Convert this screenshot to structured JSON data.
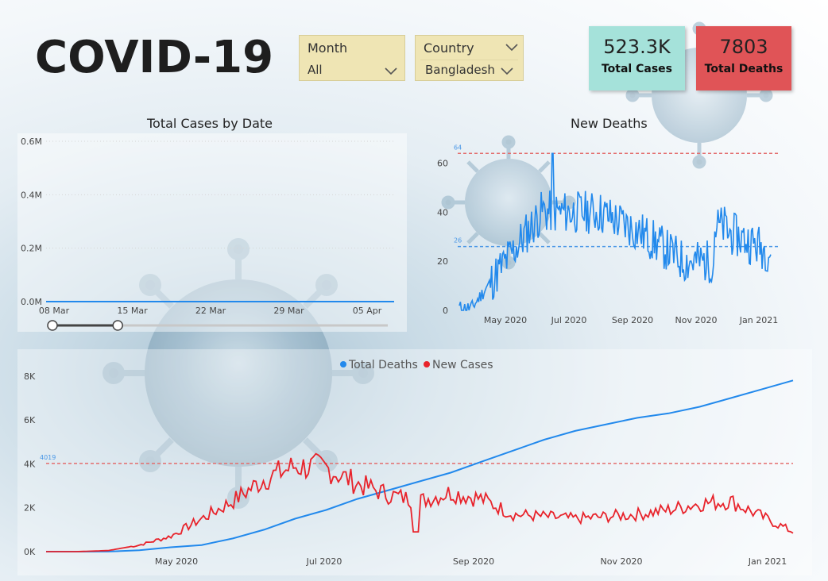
{
  "title": "COVID-19",
  "filters": {
    "month": {
      "label": "Month",
      "value": "All"
    },
    "country": {
      "label": "Country",
      "value": "Bangladesh"
    }
  },
  "cards": {
    "total_cases": {
      "value": "523.3K",
      "label": "Total Cases",
      "color": "#a5e2da"
    },
    "total_deaths": {
      "value": "7803",
      "label": "Total Deaths",
      "color": "#e05457"
    }
  },
  "colors": {
    "blue": "#2289ec",
    "red": "#e8232b",
    "ref_line": "#e36d6d"
  },
  "chart_data": [
    {
      "type": "line",
      "title": "Total Cases by Date",
      "x": [
        "08 Mar",
        "15 Mar",
        "22 Mar",
        "29 Mar",
        "05 Apr"
      ],
      "y_ticks": [
        "0.0M",
        "0.2M",
        "0.4M",
        "0.6M"
      ],
      "ylim": [
        0,
        0.6
      ],
      "series": [
        {
          "values": [
            0,
            0,
            0,
            0,
            0
          ]
        }
      ],
      "slider": {
        "start": 0.0,
        "end": 0.1
      }
    },
    {
      "type": "line",
      "title": "New Deaths",
      "x_ticks": [
        "May 2020",
        "Jul 2020",
        "Sep 2020",
        "Nov 2020",
        "Jan 2021"
      ],
      "y_ticks": [
        "0",
        "20",
        "40",
        "60"
      ],
      "ylim": [
        0,
        67
      ],
      "reference_lines": [
        {
          "label": "64",
          "value": 64,
          "style": "dashed-red"
        },
        {
          "label": "26",
          "value": 26,
          "style": "dashed-blue"
        }
      ]
    },
    {
      "type": "line",
      "legend": [
        "Total Deaths",
        "New Cases"
      ],
      "x_ticks": [
        "May 2020",
        "Jul 2020",
        "Sep 2020",
        "Nov 2020",
        "Jan 2021"
      ],
      "y_ticks": [
        "0K",
        "2K",
        "4K",
        "6K",
        "8K"
      ],
      "ylim": [
        0,
        8500
      ],
      "reference_lines": [
        {
          "label": "4019",
          "value": 4019,
          "style": "dashed-red"
        }
      ],
      "series": [
        {
          "name": "Total Deaths",
          "values": [
            0,
            0,
            5,
            60,
            200,
            300,
            600,
            1000,
            1500,
            1900,
            2400,
            2800,
            3200,
            3600,
            4100,
            4600,
            5100,
            5500,
            5800,
            6100,
            6300,
            6600,
            7000,
            7400,
            7803
          ]
        },
        {
          "name": "New Cases",
          "values": [
            0,
            0,
            50,
            300,
            700,
            1500,
            2300,
            3300,
            3900,
            3800,
            3100,
            2600,
            2300,
            2700,
            2400,
            1700,
            1600,
            1500,
            1600,
            1700,
            1900,
            2200,
            2300,
            1600,
            900
          ]
        }
      ]
    }
  ]
}
